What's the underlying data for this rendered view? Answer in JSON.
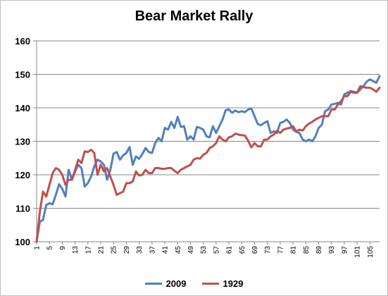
{
  "chart_data": {
    "type": "line",
    "title": "Bear Market Rally",
    "xlabel": "",
    "ylabel": "",
    "ylim": [
      100,
      160
    ],
    "yticks": [
      100,
      110,
      120,
      130,
      140,
      150,
      160
    ],
    "xlim": [
      1,
      108
    ],
    "xticks": [
      1,
      5,
      9,
      13,
      17,
      21,
      25,
      29,
      33,
      37,
      41,
      45,
      49,
      53,
      57,
      61,
      65,
      69,
      73,
      77,
      81,
      85,
      89,
      93,
      97,
      101,
      105
    ],
    "grid": true,
    "legend": "bottom",
    "series": [
      {
        "name": "2009",
        "color": "#4f81bd",
        "x": [
          1,
          2,
          3,
          4,
          5,
          6,
          7,
          8,
          9,
          10,
          11,
          12,
          13,
          14,
          15,
          16,
          17,
          18,
          19,
          20,
          21,
          22,
          23,
          24,
          25,
          26,
          27,
          28,
          29,
          30,
          31,
          32,
          33,
          34,
          35,
          36,
          37,
          38,
          39,
          40,
          41,
          42,
          43,
          44,
          45,
          46,
          47,
          48,
          49,
          50,
          51,
          52,
          53,
          54,
          55,
          56,
          57,
          58,
          59,
          60,
          61,
          62,
          63,
          64,
          65,
          66,
          67,
          68,
          69,
          70,
          71,
          72,
          73,
          74,
          75,
          76,
          77,
          78,
          79,
          80,
          81,
          82,
          83,
          84,
          85,
          86,
          87,
          88,
          89,
          90,
          91,
          92,
          93,
          94,
          95,
          96,
          97,
          98,
          99,
          100,
          101,
          102,
          103,
          104,
          105,
          106,
          107,
          108
        ],
        "values": [
          100,
          106,
          106.5,
          111,
          111.5,
          111.2,
          114,
          117.2,
          115.8,
          113.5,
          121.5,
          118.5,
          121,
          123,
          122,
          116.5,
          117.5,
          119.5,
          122.5,
          124.5,
          124,
          123,
          118.5,
          121.5,
          126.3,
          126.8,
          124.5,
          125.8,
          126.5,
          128.3,
          123,
          125.5,
          124.8,
          126.2,
          128,
          126.8,
          126.5,
          129.5,
          131,
          130,
          134,
          133.5,
          135.8,
          134,
          137.3,
          134.3,
          134.5,
          130.5,
          131.5,
          130.5,
          134.3,
          134,
          133.5,
          131.5,
          131.2,
          134.5,
          132.5,
          134.5,
          136.5,
          139.3,
          139.5,
          138.5,
          139.2,
          138.7,
          139,
          138.7,
          139.5,
          139.8,
          137.5,
          135.2,
          134.8,
          135.5,
          136,
          132.5,
          133,
          132.5,
          135.5,
          135.8,
          136.5,
          135.5,
          133.5,
          132.8,
          132.5,
          130.5,
          130,
          130.5,
          130,
          131.5,
          134,
          135,
          139,
          139.5,
          141,
          141.2,
          141.5,
          141,
          144,
          144.5,
          145,
          144.8,
          144.5,
          145.5,
          146.5,
          147.8,
          148.5,
          148,
          147.5,
          149.5
        ]
      },
      {
        "name": "1929",
        "color": "#c0504d",
        "x": [
          1,
          2,
          3,
          4,
          5,
          6,
          7,
          8,
          9,
          10,
          11,
          12,
          13,
          14,
          15,
          16,
          17,
          18,
          19,
          20,
          21,
          22,
          23,
          24,
          25,
          26,
          27,
          28,
          29,
          30,
          31,
          32,
          33,
          34,
          35,
          36,
          37,
          38,
          39,
          40,
          41,
          42,
          43,
          44,
          45,
          46,
          47,
          48,
          49,
          50,
          51,
          52,
          53,
          54,
          55,
          56,
          57,
          58,
          59,
          60,
          61,
          62,
          63,
          64,
          65,
          66,
          67,
          68,
          69,
          70,
          71,
          72,
          73,
          74,
          75,
          76,
          77,
          78,
          79,
          80,
          81,
          82,
          83,
          84,
          85,
          86,
          87,
          88,
          89,
          90,
          91,
          92,
          93,
          94,
          95,
          96,
          97,
          98,
          99,
          100,
          101,
          102,
          103,
          104,
          105,
          106,
          107,
          108
        ],
        "values": [
          100,
          109,
          115,
          113.5,
          117,
          120.5,
          122,
          121.5,
          120,
          117,
          118.5,
          118.5,
          121.5,
          124.5,
          123.5,
          127,
          126.8,
          127.5,
          126.5,
          120,
          123,
          121,
          122,
          119.5,
          117,
          114,
          114.5,
          115,
          117.5,
          117.5,
          118,
          121,
          119.8,
          120,
          121.5,
          120.5,
          120.5,
          122,
          122,
          121.8,
          121.8,
          122,
          122,
          121.2,
          120.5,
          121.5,
          122,
          122.5,
          123,
          124.5,
          125,
          124.8,
          126,
          126.5,
          128,
          128.5,
          129.5,
          131.5,
          130.5,
          130,
          131.2,
          131.5,
          132.3,
          132,
          131.8,
          131.7,
          130.2,
          128.2,
          129.5,
          128.5,
          128.5,
          130.5,
          130.5,
          131.5,
          132,
          133.2,
          132.5,
          133.5,
          133.8,
          134,
          134.5,
          133,
          133.5,
          133.2,
          134.5,
          135.3,
          135.8,
          136.5,
          137,
          137.5,
          137.5,
          137.5,
          139.5,
          139.5,
          141,
          142,
          143.5,
          143.5,
          144.8,
          144.5,
          144.5,
          146.5,
          146.2,
          146,
          146,
          145.5,
          144.8,
          146
        ]
      }
    ]
  }
}
